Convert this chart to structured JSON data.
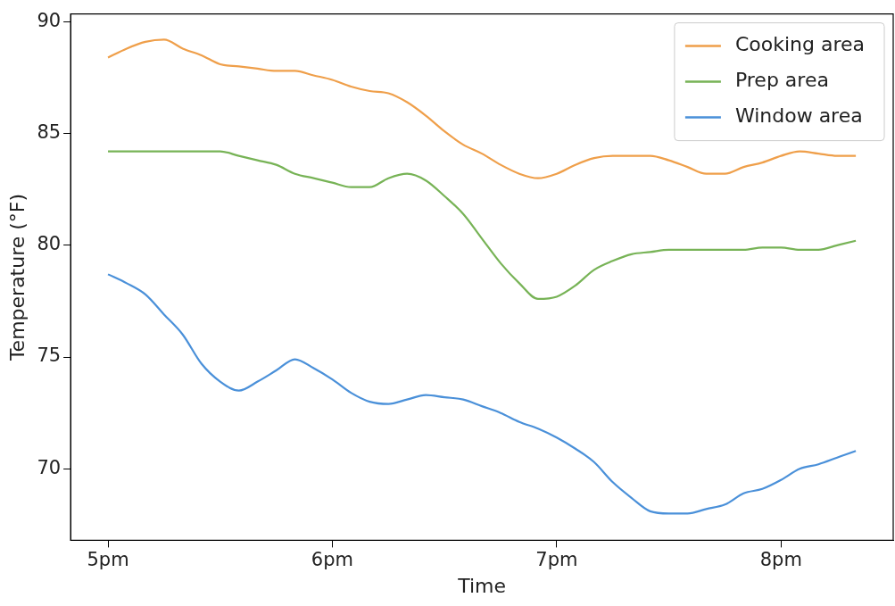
{
  "chart_data": {
    "type": "line",
    "xlabel": "Time",
    "ylabel": "Temperature (°F)",
    "ylim": [
      66.8,
      90.35
    ],
    "categories": [
      "5pm",
      null,
      null,
      null,
      null,
      null,
      null,
      null,
      null,
      null,
      null,
      null,
      "6pm",
      null,
      null,
      null,
      null,
      null,
      null,
      null,
      null,
      null,
      null,
      null,
      "7pm",
      null,
      null,
      null,
      null,
      null,
      null,
      null,
      null,
      null,
      null,
      null,
      "8pm",
      null,
      null,
      null,
      null
    ],
    "yticks": [
      70,
      75,
      80,
      85,
      90
    ],
    "grid": false,
    "legend": "top right",
    "marker": "none",
    "line_style": "solid",
    "series": [
      {
        "name": "Cooking area",
        "color": "#ef9f4a",
        "values": [
          88.4,
          88.8,
          89.1,
          89.2,
          88.8,
          88.5,
          88.1,
          88.0,
          87.9,
          87.8,
          87.8,
          87.6,
          87.4,
          87.1,
          86.9,
          86.8,
          86.4,
          85.8,
          85.1,
          84.5,
          84.1,
          83.6,
          83.2,
          83.0,
          83.2,
          83.6,
          83.9,
          84.0,
          84.0,
          84.0,
          83.8,
          83.5,
          83.2,
          83.2,
          83.5,
          83.7,
          84.0,
          84.2,
          84.1,
          84.0,
          84.0
        ]
      },
      {
        "name": "Prep area",
        "color": "#77b356",
        "values": [
          84.2,
          84.2,
          84.2,
          84.2,
          84.2,
          84.2,
          84.2,
          84.0,
          83.8,
          83.6,
          83.2,
          83.0,
          82.8,
          82.6,
          82.6,
          83.0,
          83.2,
          82.9,
          82.2,
          81.4,
          80.3,
          79.2,
          78.3,
          77.6,
          77.7,
          78.2,
          78.9,
          79.3,
          79.6,
          79.7,
          79.8,
          79.8,
          79.8,
          79.8,
          79.8,
          79.9,
          79.9,
          79.8,
          79.8,
          80.0,
          80.2
        ]
      },
      {
        "name": "Window area",
        "color": "#4a90d9",
        "values": [
          78.7,
          78.3,
          77.8,
          76.9,
          76.0,
          74.7,
          73.9,
          73.5,
          73.9,
          74.4,
          74.9,
          74.5,
          74.0,
          73.4,
          73.0,
          72.9,
          73.1,
          73.3,
          73.2,
          73.1,
          72.8,
          72.5,
          72.1,
          71.8,
          71.4,
          70.9,
          70.3,
          69.4,
          68.7,
          68.1,
          68.0,
          68.0,
          68.2,
          68.4,
          68.9,
          69.1,
          69.5,
          70.0,
          70.2,
          70.5,
          70.8
        ]
      }
    ]
  }
}
